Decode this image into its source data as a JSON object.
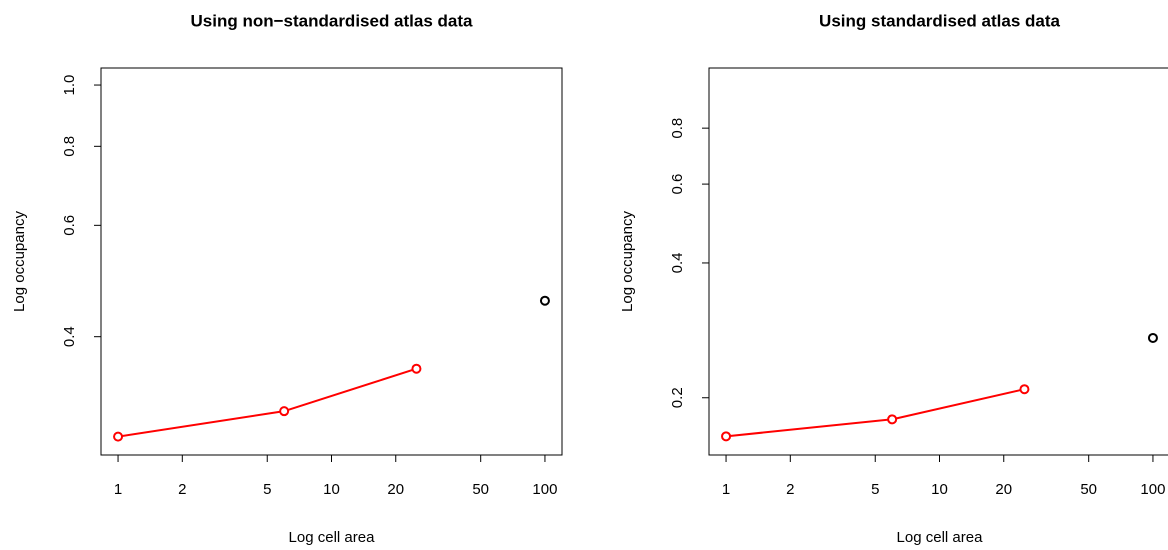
{
  "chart_data": [
    {
      "type": "line",
      "title": "Using non−standardised atlas data",
      "x_label": "Log cell area",
      "y_label": "Log occupancy",
      "log_x": true,
      "log_y": true,
      "xlim": [
        0.832,
        120.2
      ],
      "ylim": [
        0.26,
        1.064
      ],
      "xticks": [
        1,
        2,
        5,
        10,
        20,
        50,
        100
      ],
      "yticks": [
        0.4,
        0.6,
        0.8,
        {
          "value": 1.0,
          "label": "1.0"
        }
      ],
      "series": [
        {
          "color": "#ff0000",
          "x": [
            1,
            6,
            25
          ],
          "values": [
            0.278,
            0.305,
            0.356
          ],
          "line": true
        },
        {
          "color": "#000000",
          "x": [
            100
          ],
          "values": [
            0.456
          ],
          "line": false
        }
      ]
    },
    {
      "type": "line",
      "title": "Using standardised atlas data",
      "x_label": "Log cell area",
      "y_label": "Log occupancy",
      "log_x": true,
      "log_y": true,
      "xlim": [
        0.832,
        120.2
      ],
      "ylim": [
        0.149,
        1.09
      ],
      "xticks": [
        1,
        2,
        5,
        10,
        20,
        50,
        100
      ],
      "yticks": [
        0.2,
        0.4,
        0.6,
        0.8
      ],
      "series": [
        {
          "color": "#ff0000",
          "x": [
            1,
            6,
            25
          ],
          "values": [
            0.164,
            0.179,
            0.209
          ],
          "line": true
        },
        {
          "color": "#000000",
          "x": [
            100
          ],
          "values": [
            0.272
          ],
          "line": false
        }
      ]
    }
  ]
}
